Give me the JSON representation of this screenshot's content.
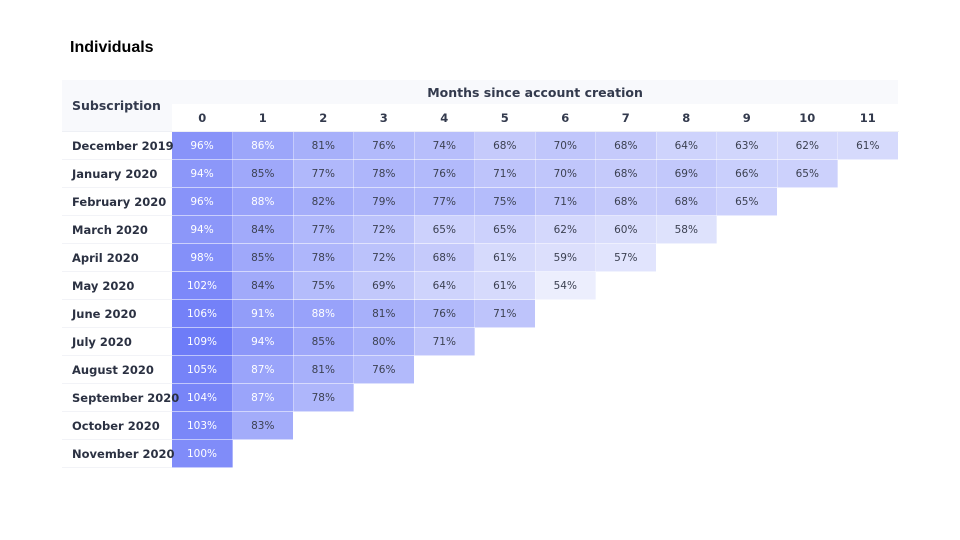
{
  "page": {
    "title": "Individuals"
  },
  "colors": {
    "heat_max": "#6e7cf8",
    "heat_min": "#eceefd",
    "header_bg": "#f8f9fc"
  },
  "chart_data": {
    "type": "heatmap",
    "title": "Individuals",
    "row_header": "Subscription",
    "column_group_label": "Months since account creation",
    "columns": [
      "0",
      "1",
      "2",
      "3",
      "4",
      "5",
      "6",
      "7",
      "8",
      "9",
      "10",
      "11"
    ],
    "rows": [
      {
        "label": "December 2019",
        "values": [
          96,
          86,
          81,
          76,
          74,
          68,
          70,
          68,
          64,
          63,
          62,
          61
        ],
        "display": [
          "96%",
          "86%",
          "81%",
          "76%",
          "74%",
          "68%",
          "70%",
          "68%",
          "64%",
          "63%",
          "62%",
          "61%"
        ]
      },
      {
        "label": "January 2020",
        "values": [
          94,
          85,
          77,
          78,
          76,
          71,
          70,
          68,
          69,
          66,
          65
        ],
        "display": [
          "94%",
          "85%",
          "77%",
          "78%",
          "76%",
          "71%",
          "70%",
          "68%",
          "69%",
          "66%",
          "65%"
        ]
      },
      {
        "label": "February 2020",
        "values": [
          96,
          88,
          82,
          79,
          77,
          75,
          71,
          68,
          68,
          65
        ],
        "display": [
          "96%",
          "88%",
          "82%",
          "79%",
          "77%",
          "75%",
          "71%",
          "68%",
          "68%",
          "65%"
        ]
      },
      {
        "label": "March 2020",
        "values": [
          94,
          84,
          77,
          72,
          65,
          65,
          62,
          60,
          58
        ],
        "display": [
          "94%",
          "84%",
          "77%",
          "72%",
          "65%",
          "65%",
          "62%",
          "60%",
          "58%"
        ]
      },
      {
        "label": "April 2020",
        "values": [
          98,
          85,
          78,
          72,
          68,
          61,
          59,
          57
        ],
        "display": [
          "98%",
          "85%",
          "78%",
          "72%",
          "68%",
          "61%",
          "59%",
          "57%"
        ]
      },
      {
        "label": "May 2020",
        "values": [
          102,
          84,
          75,
          69,
          64,
          61,
          54
        ],
        "display": [
          "102%",
          "84%",
          "75%",
          "69%",
          "64%",
          "61%",
          "54%"
        ]
      },
      {
        "label": "June 2020",
        "values": [
          106,
          91,
          88,
          81,
          76,
          71
        ],
        "display": [
          "106%",
          "91%",
          "88%",
          "81%",
          "76%",
          "71%"
        ]
      },
      {
        "label": "July 2020",
        "values": [
          109,
          94,
          85,
          80,
          71
        ],
        "display": [
          "109%",
          "94%",
          "85%",
          "80%",
          "71%"
        ]
      },
      {
        "label": "August 2020",
        "values": [
          105,
          87,
          81,
          76
        ],
        "display": [
          "105%",
          "87%",
          "81%",
          "76%"
        ]
      },
      {
        "label": "September 2020",
        "values": [
          104,
          87,
          78
        ],
        "display": [
          "104%",
          "87%",
          "78%"
        ]
      },
      {
        "label": "October 2020",
        "values": [
          103,
          83
        ],
        "display": [
          "103%",
          "83%"
        ]
      },
      {
        "label": "November 2020",
        "values": [
          100
        ],
        "display": [
          "100%"
        ]
      }
    ]
  }
}
